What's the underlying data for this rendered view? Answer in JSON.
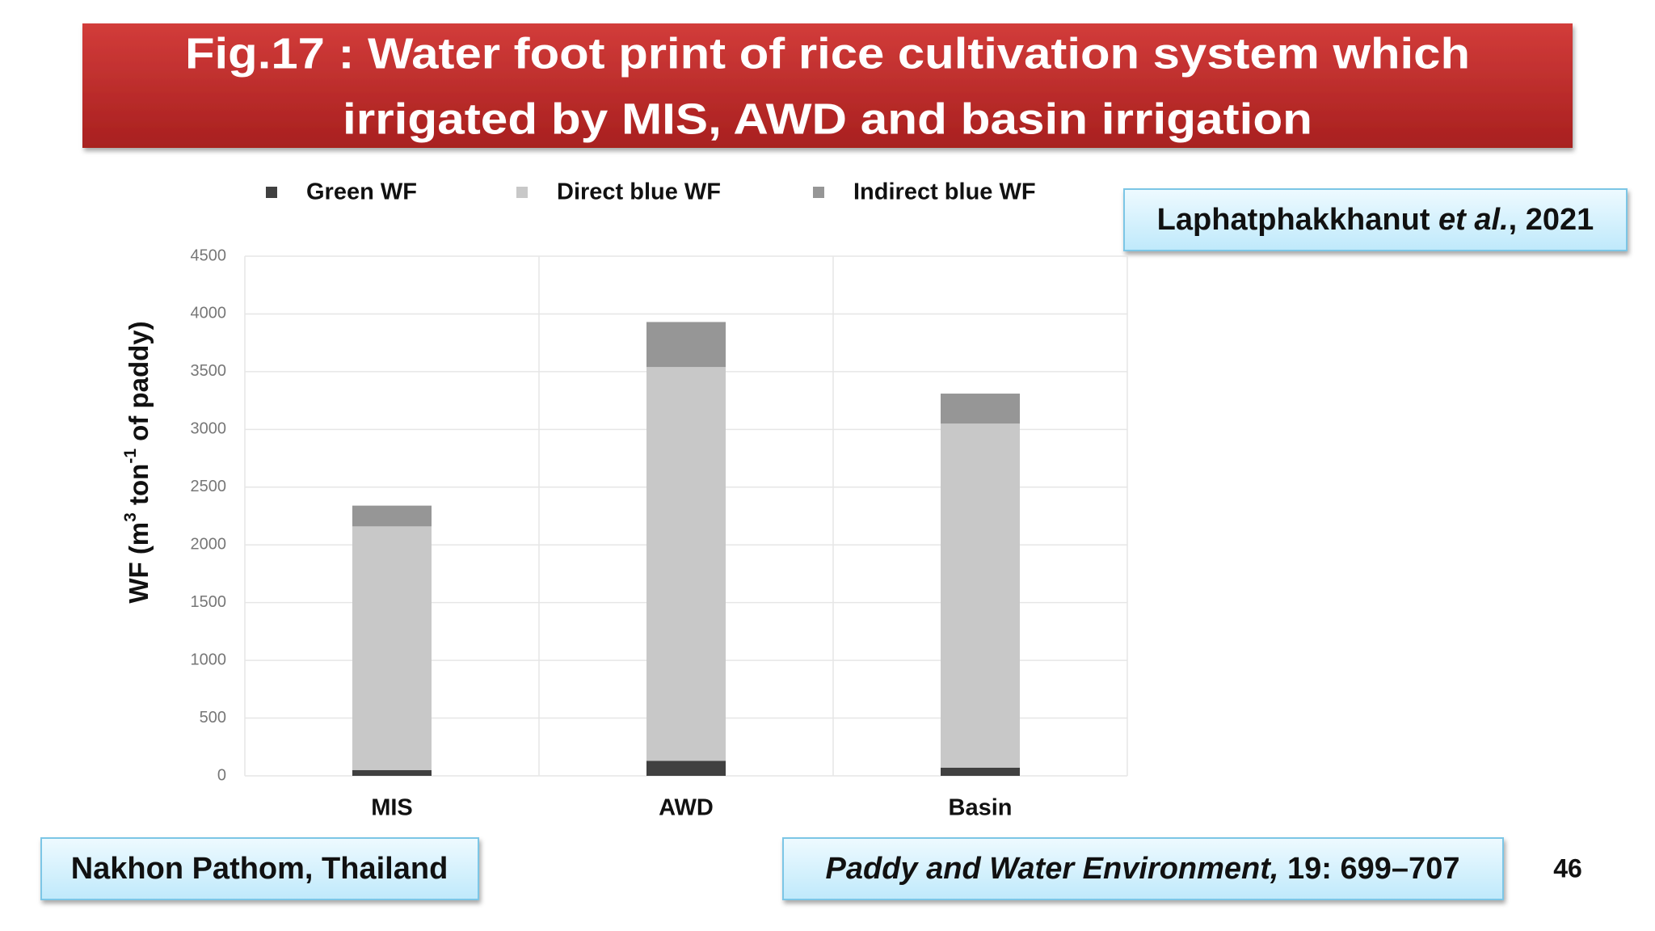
{
  "slide": {
    "title": [
      "Fig.17 : Water foot print of rice cultivation system which",
      "irrigated by MIS, AWD and basin irrigation"
    ],
    "citation": [
      "Laphatphakkhanut ",
      "et al.",
      ", 2021"
    ],
    "location": "Nakhon Pathom, Thailand",
    "journal": [
      "Paddy and Water Environment,",
      " 19: 699–707"
    ],
    "page_number": "46"
  },
  "chart_data": {
    "type": "stacked_bar",
    "y_label": [
      "WF (m",
      "3",
      " ton",
      "-1",
      " of paddy)"
    ],
    "categories": [
      "MIS",
      "AWD",
      "Basin"
    ],
    "series": [
      {
        "name": "Green WF",
        "color": "#404040",
        "values": [
          50,
          130,
          70
        ]
      },
      {
        "name": "Direct blue WF",
        "color": "#c8c8c8",
        "values": [
          2110,
          3410,
          2980
        ]
      },
      {
        "name": "Indirect blue WF",
        "color": "#969696",
        "values": [
          180,
          390,
          260
        ]
      }
    ],
    "ylim": [
      0,
      4500
    ],
    "yticks": [
      0,
      500,
      1000,
      1500,
      2000,
      2500,
      3000,
      3500,
      4000,
      4500
    ],
    "grid": true,
    "legend": "top"
  }
}
